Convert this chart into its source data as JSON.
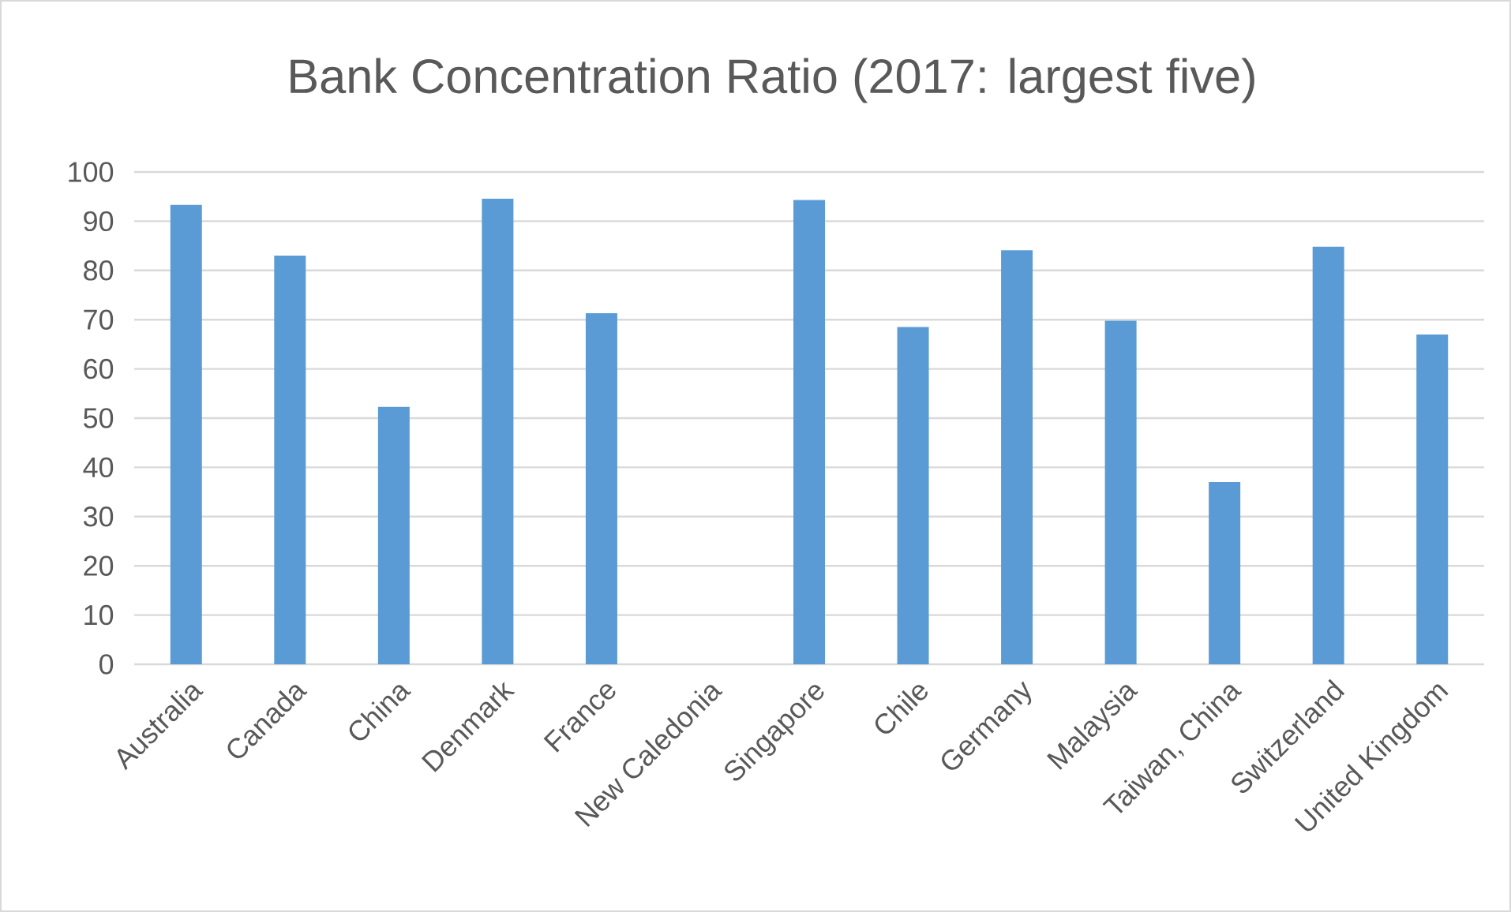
{
  "chart_data": {
    "type": "bar",
    "title": "Bank Concentration Ratio (2017: largest five)",
    "categories": [
      "Australia",
      "Canada",
      "China",
      "Denmark",
      "France",
      "New Caledonia",
      "Singapore",
      "Chile",
      "Germany",
      "Malaysia",
      "Taiwan, China",
      "Switzerland",
      "United Kingdom"
    ],
    "values": [
      93.3,
      83.0,
      52.3,
      94.6,
      71.3,
      null,
      94.3,
      68.5,
      84.1,
      69.8,
      37.0,
      84.8,
      67.0
    ],
    "color": "#5b9bd5",
    "ylim": [
      0,
      100
    ],
    "yticks": [
      0,
      10,
      20,
      30,
      40,
      50,
      60,
      70,
      80,
      90,
      100
    ],
    "grid": "y"
  }
}
